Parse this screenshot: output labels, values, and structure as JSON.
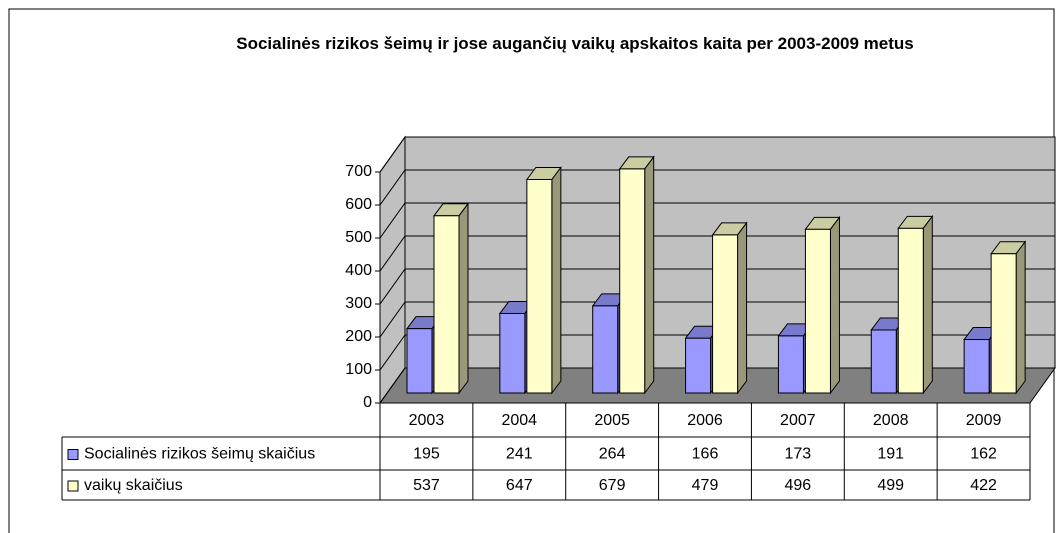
{
  "chart_data": {
    "type": "bar3d",
    "title": "Socialinės rizikos šeimų ir jose augančių vaikų apskaitos kaita per 2003-2009 metus",
    "categories": [
      "2003",
      "2004",
      "2005",
      "2006",
      "2007",
      "2008",
      "2009"
    ],
    "series": [
      {
        "name": "Socialinės rizikos šeimų skaičius",
        "color": "#9999ff",
        "values": [
          195,
          241,
          264,
          166,
          173,
          191,
          162
        ]
      },
      {
        "name": "vaikų skaičius",
        "color": "#ffffcc",
        "values": [
          537,
          647,
          679,
          479,
          496,
          499,
          422
        ]
      }
    ],
    "ylim": [
      0,
      700
    ],
    "yticks": [
      0,
      100,
      200,
      300,
      400,
      500,
      600,
      700
    ],
    "grid": true
  }
}
